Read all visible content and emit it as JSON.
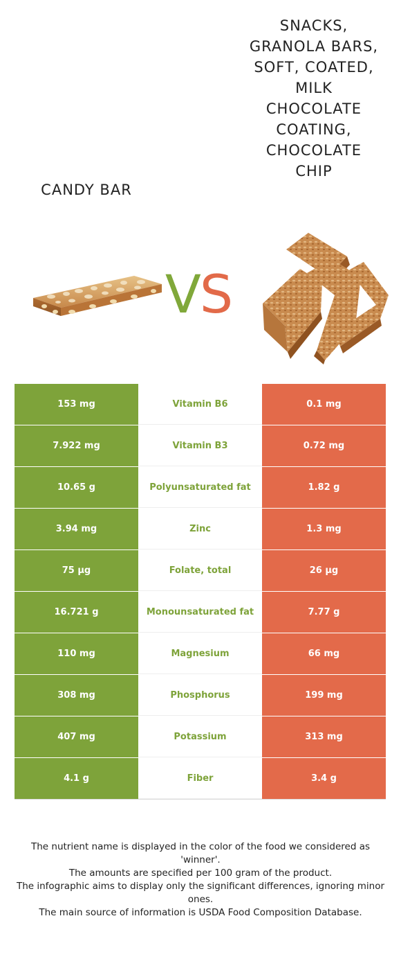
{
  "foods": {
    "left": {
      "name": "CANDY BAR",
      "color": "#7ea33a",
      "image_icon": "candy-bar-image"
    },
    "right": {
      "name": "SNACKS, GRANOLA BARS, SOFT, COATED, MILK CHOCOLATE COATING, CHOCOLATE CHIP",
      "color": "#e36a4a",
      "image_icon": "granola-bars-image"
    }
  },
  "vs": {
    "v": "V",
    "s": "S"
  },
  "rows": [
    {
      "left": "153 mg",
      "nutrient": "Vitamin B6",
      "right": "0.1 mg"
    },
    {
      "left": "7.922 mg",
      "nutrient": "Vitamin B3",
      "right": "0.72 mg"
    },
    {
      "left": "10.65 g",
      "nutrient": "Polyunsaturated fat",
      "right": "1.82 g"
    },
    {
      "left": "3.94 mg",
      "nutrient": "Zinc",
      "right": "1.3 mg"
    },
    {
      "left": "75 µg",
      "nutrient": "Folate, total",
      "right": "26 µg"
    },
    {
      "left": "16.721 g",
      "nutrient": "Monounsaturated fat",
      "right": "7.77 g"
    },
    {
      "left": "110 mg",
      "nutrient": "Magnesium",
      "right": "66 mg"
    },
    {
      "left": "308 mg",
      "nutrient": "Phosphorus",
      "right": "199 mg"
    },
    {
      "left": "407 mg",
      "nutrient": "Potassium",
      "right": "313 mg"
    },
    {
      "left": "4.1 g",
      "nutrient": "Fiber",
      "right": "3.4 g"
    }
  ],
  "footnotes": [
    "The nutrient name is displayed in the color of the food we considered as 'winner'.",
    "The amounts are specified per 100 gram of the product.",
    "The infographic aims to display only the significant differences, ignoring minor ones.",
    "The main source of information is USDA Food Composition Database."
  ]
}
